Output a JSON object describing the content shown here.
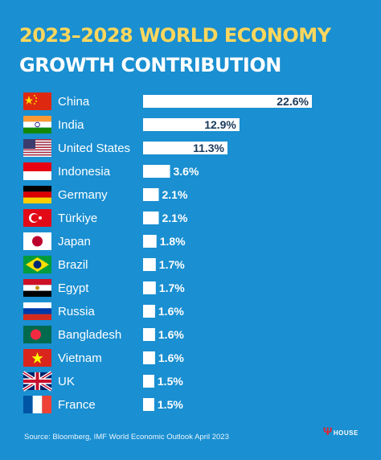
{
  "title_line1": "2023–2028 WORLD ECONOMY",
  "title_line2": "GROWTH CONTRIBUTION",
  "source": "Source: Bloomberg, IMF World Economic Outlook April 2023",
  "logo_text": "HOUSE",
  "colors": {
    "background": "#1a8fd1",
    "title_accent": "#ffd75c",
    "bar": "#ffffff",
    "value_text": "#1a3a5c"
  },
  "chart_data": {
    "type": "bar",
    "orientation": "horizontal",
    "title": "2023–2028 WORLD ECONOMY GROWTH CONTRIBUTION",
    "categories": [
      "China",
      "India",
      "United States",
      "Indonesia",
      "Germany",
      "Türkiye",
      "Japan",
      "Brazil",
      "Egypt",
      "Russia",
      "Bangladesh",
      "Vietnam",
      "UK",
      "France"
    ],
    "values": [
      22.6,
      12.9,
      11.3,
      3.6,
      2.1,
      2.1,
      1.8,
      1.7,
      1.7,
      1.6,
      1.6,
      1.6,
      1.5,
      1.5
    ],
    "value_labels": [
      "22.6%",
      "12.9%",
      "11.3%",
      "3.6%",
      "2.1%",
      "2.1%",
      "1.8%",
      "1.7%",
      "1.7%",
      "1.6%",
      "1.6%",
      "1.6%",
      "1.5%",
      "1.5%"
    ],
    "flag_icons": [
      "china-flag-icon",
      "india-flag-icon",
      "united-states-flag-icon",
      "indonesia-flag-icon",
      "germany-flag-icon",
      "turkiye-flag-icon",
      "japan-flag-icon",
      "brazil-flag-icon",
      "egypt-flag-icon",
      "russia-flag-icon",
      "bangladesh-flag-icon",
      "vietnam-flag-icon",
      "uk-flag-icon",
      "france-flag-icon"
    ],
    "xlabel": "",
    "ylabel": "",
    "grid": false,
    "legend": "none"
  }
}
